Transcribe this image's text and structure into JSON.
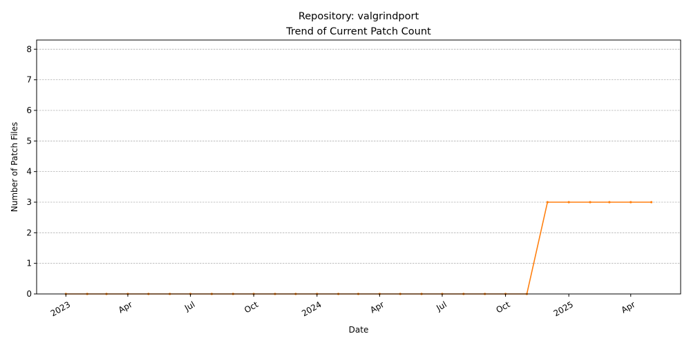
{
  "chart_data": {
    "type": "line",
    "title": "Repository: valgrindport",
    "subtitle": "Trend of Current Patch Count",
    "xlabel": "Date",
    "ylabel": "Number of Patch Files",
    "ylim": [
      0,
      8.3
    ],
    "y_ticks": [
      0,
      1,
      2,
      3,
      4,
      5,
      6,
      7,
      8
    ],
    "x_ticks": [
      {
        "date": "2023-01-01",
        "label": "2023"
      },
      {
        "date": "2023-04-01",
        "label": "Apr"
      },
      {
        "date": "2023-07-01",
        "label": "Jul"
      },
      {
        "date": "2023-10-01",
        "label": "Oct"
      },
      {
        "date": "2024-01-01",
        "label": "2024"
      },
      {
        "date": "2024-04-01",
        "label": "Apr"
      },
      {
        "date": "2024-07-01",
        "label": "Jul"
      },
      {
        "date": "2024-10-01",
        "label": "Oct"
      },
      {
        "date": "2025-01-01",
        "label": "2025"
      },
      {
        "date": "2025-04-01",
        "label": "Apr"
      }
    ],
    "grid": "y-dashed",
    "color": "#ff7f0e",
    "series": [
      {
        "x": [
          "2023-01-01",
          "2023-02-01",
          "2023-03-01",
          "2023-04-01",
          "2023-05-01",
          "2023-06-01",
          "2023-07-01",
          "2023-08-01",
          "2023-09-01",
          "2023-10-01",
          "2023-11-01",
          "2023-12-01",
          "2024-01-01",
          "2024-02-01",
          "2024-03-01",
          "2024-04-01",
          "2024-05-01",
          "2024-06-01",
          "2024-07-01",
          "2024-08-01",
          "2024-09-01",
          "2024-10-01",
          "2024-11-01",
          "2024-12-01",
          "2025-01-01",
          "2025-02-01",
          "2025-03-01",
          "2025-04-01",
          "2025-05-01"
        ],
        "y": [
          0,
          0,
          0,
          0,
          0,
          0,
          0,
          0,
          0,
          0,
          0,
          0,
          0,
          0,
          0,
          0,
          0,
          0,
          0,
          0,
          0,
          0,
          0,
          3,
          3,
          3,
          3,
          3,
          3
        ]
      }
    ]
  }
}
